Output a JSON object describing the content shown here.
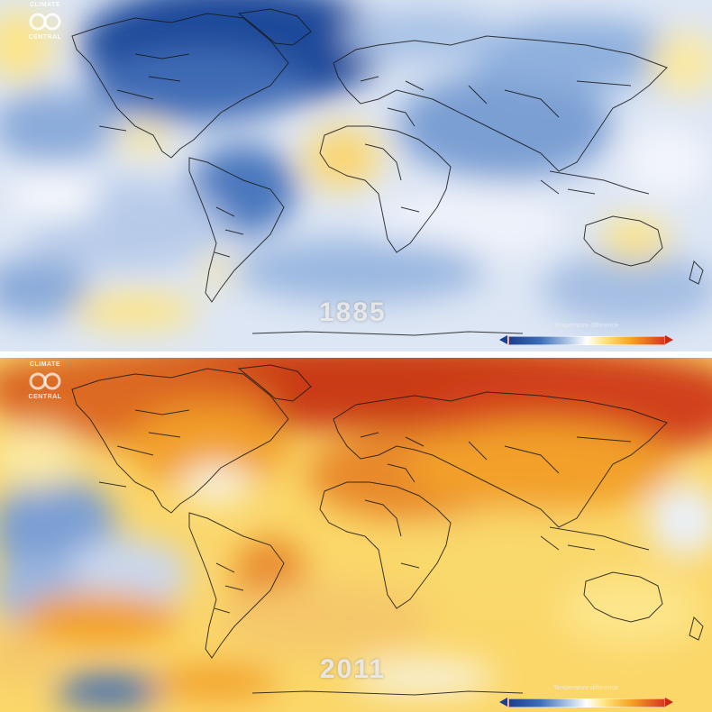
{
  "logo": {
    "line1": "CLIMATE",
    "line2": "CENTRAL"
  },
  "panels": [
    {
      "year": "1885",
      "legend_title": "Temperature difference"
    },
    {
      "year": "2011",
      "legend_title": "Temperature difference"
    }
  ],
  "colors": {
    "cold_dark": "#1f4a9a",
    "cold": "#7a9fd3",
    "neutral": "#f4f6fb",
    "warm_light": "#fde58a",
    "warm": "#f2a02a",
    "hot": "#d2401c",
    "coastline": "#1a1a1a"
  }
}
